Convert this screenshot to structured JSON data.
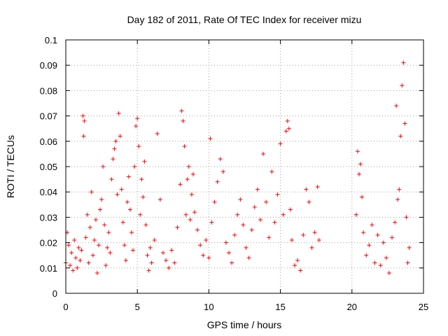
{
  "chart_data": {
    "type": "scatter",
    "title": "Day 182 of 2011, Rate Of TEC Index for receiver mizu",
    "xlabel": "GPS time / hours",
    "ylabel": "ROTI / TECUs",
    "xlim": [
      0,
      25
    ],
    "ylim": [
      0,
      0.1
    ],
    "x_ticks": [
      0,
      5,
      10,
      15,
      20,
      25
    ],
    "x_tick_labels": [
      "0",
      "5",
      "10",
      "15",
      "20",
      "25"
    ],
    "y_ticks": [
      0,
      0.01,
      0.02,
      0.03,
      0.04,
      0.05,
      0.06,
      0.07,
      0.08,
      0.09,
      0.1
    ],
    "y_tick_labels": [
      "0",
      "0.01",
      "0.02",
      "0.03",
      "0.04",
      "0.05",
      "0.06",
      "0.07",
      "0.08",
      "0.09",
      "0.1"
    ],
    "grid": true,
    "marker": "+",
    "marker_color": "#ff0000",
    "data_gap_hours": [
      17.8,
      20.2
    ],
    "series": [
      {
        "name": "ROTI",
        "points": [
          [
            0.0,
            0.012
          ],
          [
            0.1,
            0.024
          ],
          [
            0.2,
            0.019
          ],
          [
            0.3,
            0.011
          ],
          [
            0.4,
            0.016
          ],
          [
            0.5,
            0.009
          ],
          [
            0.6,
            0.021
          ],
          [
            0.7,
            0.014
          ],
          [
            0.8,
            0.01
          ],
          [
            0.9,
            0.018
          ],
          [
            1.0,
            0.013
          ],
          [
            1.1,
            0.017
          ],
          [
            1.2,
            0.07
          ],
          [
            1.25,
            0.062
          ],
          [
            1.3,
            0.068
          ],
          [
            1.4,
            0.022
          ],
          [
            1.5,
            0.031
          ],
          [
            1.6,
            0.012
          ],
          [
            1.7,
            0.026
          ],
          [
            1.8,
            0.04
          ],
          [
            1.9,
            0.015
          ],
          [
            2.0,
            0.021
          ],
          [
            2.1,
            0.029
          ],
          [
            2.2,
            0.008
          ],
          [
            2.3,
            0.019
          ],
          [
            2.4,
            0.033
          ],
          [
            2.5,
            0.037
          ],
          [
            2.6,
            0.05
          ],
          [
            2.7,
            0.027
          ],
          [
            2.8,
            0.011
          ],
          [
            2.9,
            0.018
          ],
          [
            3.0,
            0.024
          ],
          [
            3.1,
            0.016
          ],
          [
            3.2,
            0.045
          ],
          [
            3.3,
            0.053
          ],
          [
            3.4,
            0.057
          ],
          [
            3.5,
            0.06
          ],
          [
            3.6,
            0.039
          ],
          [
            3.7,
            0.071
          ],
          [
            3.8,
            0.062
          ],
          [
            3.9,
            0.041
          ],
          [
            4.0,
            0.028
          ],
          [
            4.1,
            0.019
          ],
          [
            4.2,
            0.013
          ],
          [
            4.3,
            0.036
          ],
          [
            4.4,
            0.046
          ],
          [
            4.5,
            0.033
          ],
          [
            4.6,
            0.024
          ],
          [
            4.7,
            0.017
          ],
          [
            4.8,
            0.05
          ],
          [
            4.9,
            0.066
          ],
          [
            5.0,
            0.069
          ],
          [
            5.1,
            0.058
          ],
          [
            5.2,
            0.031
          ],
          [
            5.3,
            0.045
          ],
          [
            5.4,
            0.038
          ],
          [
            5.5,
            0.052
          ],
          [
            5.6,
            0.027
          ],
          [
            5.7,
            0.015
          ],
          [
            5.8,
            0.009
          ],
          [
            5.9,
            0.018
          ],
          [
            6.0,
            0.012
          ],
          [
            6.2,
            0.021
          ],
          [
            6.4,
            0.063
          ],
          [
            6.6,
            0.037
          ],
          [
            6.8,
            0.016
          ],
          [
            7.0,
            0.013
          ],
          [
            7.2,
            0.01
          ],
          [
            7.4,
            0.017
          ],
          [
            7.6,
            0.012
          ],
          [
            7.8,
            0.026
          ],
          [
            8.0,
            0.043
          ],
          [
            8.1,
            0.072
          ],
          [
            8.2,
            0.068
          ],
          [
            8.3,
            0.058
          ],
          [
            8.4,
            0.031
          ],
          [
            8.5,
            0.045
          ],
          [
            8.6,
            0.05
          ],
          [
            8.7,
            0.029
          ],
          [
            8.8,
            0.039
          ],
          [
            8.9,
            0.047
          ],
          [
            9.0,
            0.032
          ],
          [
            9.2,
            0.025
          ],
          [
            9.4,
            0.019
          ],
          [
            9.6,
            0.015
          ],
          [
            9.8,
            0.021
          ],
          [
            10.0,
            0.014
          ],
          [
            10.1,
            0.061
          ],
          [
            10.2,
            0.028
          ],
          [
            10.4,
            0.036
          ],
          [
            10.6,
            0.044
          ],
          [
            10.8,
            0.053
          ],
          [
            11.0,
            0.048
          ],
          [
            11.2,
            0.02
          ],
          [
            11.4,
            0.016
          ],
          [
            11.6,
            0.012
          ],
          [
            11.8,
            0.023
          ],
          [
            12.0,
            0.031
          ],
          [
            12.2,
            0.037
          ],
          [
            12.4,
            0.027
          ],
          [
            12.6,
            0.018
          ],
          [
            12.8,
            0.014
          ],
          [
            13.0,
            0.025
          ],
          [
            13.2,
            0.034
          ],
          [
            13.4,
            0.041
          ],
          [
            13.6,
            0.029
          ],
          [
            13.8,
            0.055
          ],
          [
            14.0,
            0.036
          ],
          [
            14.2,
            0.022
          ],
          [
            14.4,
            0.048
          ],
          [
            14.6,
            0.028
          ],
          [
            14.8,
            0.039
          ],
          [
            15.0,
            0.059
          ],
          [
            15.2,
            0.031
          ],
          [
            15.4,
            0.064
          ],
          [
            15.5,
            0.068
          ],
          [
            15.6,
            0.065
          ],
          [
            15.7,
            0.033
          ],
          [
            15.8,
            0.021
          ],
          [
            16.0,
            0.011
          ],
          [
            16.2,
            0.013
          ],
          [
            16.4,
            0.009
          ],
          [
            16.6,
            0.023
          ],
          [
            16.8,
            0.041
          ],
          [
            17.0,
            0.036
          ],
          [
            17.2,
            0.018
          ],
          [
            17.4,
            0.024
          ],
          [
            17.6,
            0.042
          ],
          [
            17.7,
            0.021
          ],
          [
            20.3,
            0.031
          ],
          [
            20.4,
            0.056
          ],
          [
            20.5,
            0.047
          ],
          [
            20.6,
            0.051
          ],
          [
            20.7,
            0.038
          ],
          [
            20.8,
            0.024
          ],
          [
            21.0,
            0.015
          ],
          [
            21.2,
            0.019
          ],
          [
            21.4,
            0.027
          ],
          [
            21.6,
            0.012
          ],
          [
            21.8,
            0.023
          ],
          [
            22.0,
            0.011
          ],
          [
            22.2,
            0.02
          ],
          [
            22.4,
            0.014
          ],
          [
            22.6,
            0.008
          ],
          [
            22.8,
            0.022
          ],
          [
            23.0,
            0.028
          ],
          [
            23.1,
            0.074
          ],
          [
            23.2,
            0.037
          ],
          [
            23.3,
            0.041
          ],
          [
            23.4,
            0.062
          ],
          [
            23.5,
            0.082
          ],
          [
            23.6,
            0.091
          ],
          [
            23.7,
            0.067
          ],
          [
            23.8,
            0.03
          ],
          [
            23.9,
            0.012
          ],
          [
            24.0,
            0.018
          ]
        ]
      }
    ]
  }
}
